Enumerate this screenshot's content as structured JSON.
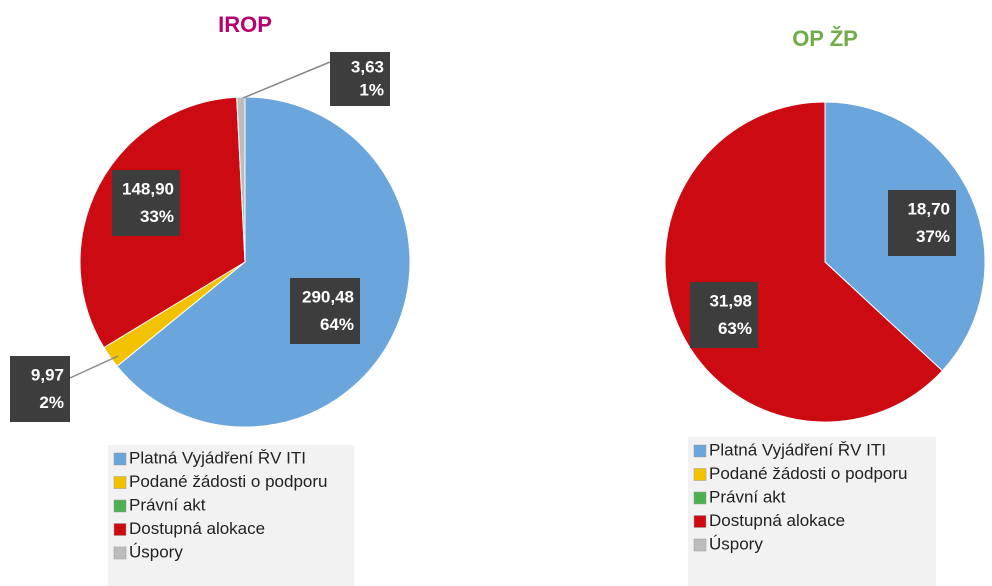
{
  "chart_data": [
    {
      "type": "pie",
      "title": "IROP",
      "title_color": "#b5006e",
      "categories": [
        "Platná Vyjádření ŘV ITI",
        "Podané žádosti o podporu",
        "Právní akt",
        "Dostupná alokace",
        "Úspory"
      ],
      "colors": [
        "#6aa6dc",
        "#f2c200",
        "#4caf50",
        "#cc0a12",
        "#bdbdbd"
      ],
      "values": [
        290.48,
        9.97,
        0,
        148.9,
        3.63
      ],
      "value_labels": [
        "290,48",
        "9,97",
        null,
        "148,90",
        "3,63"
      ],
      "percents": [
        64,
        2,
        null,
        33,
        1
      ],
      "percent_labels": [
        "64%",
        "2%",
        null,
        "33%",
        "1%"
      ]
    },
    {
      "type": "pie",
      "title": "OP ŽP",
      "title_color": "#70ad47",
      "categories": [
        "Platná Vyjádření ŘV ITI",
        "Podané žádosti o podporu",
        "Právní akt",
        "Dostupná alokace",
        "Úspory"
      ],
      "colors": [
        "#6aa6dc",
        "#f2c200",
        "#4caf50",
        "#cc0a12",
        "#bdbdbd"
      ],
      "values": [
        18.7,
        0,
        0,
        31.98,
        0
      ],
      "value_labels": [
        "18,70",
        null,
        null,
        "31,98",
        null
      ],
      "percents": [
        37,
        null,
        null,
        63,
        null
      ],
      "percent_labels": [
        "37%",
        null,
        null,
        "63%",
        null
      ]
    }
  ]
}
